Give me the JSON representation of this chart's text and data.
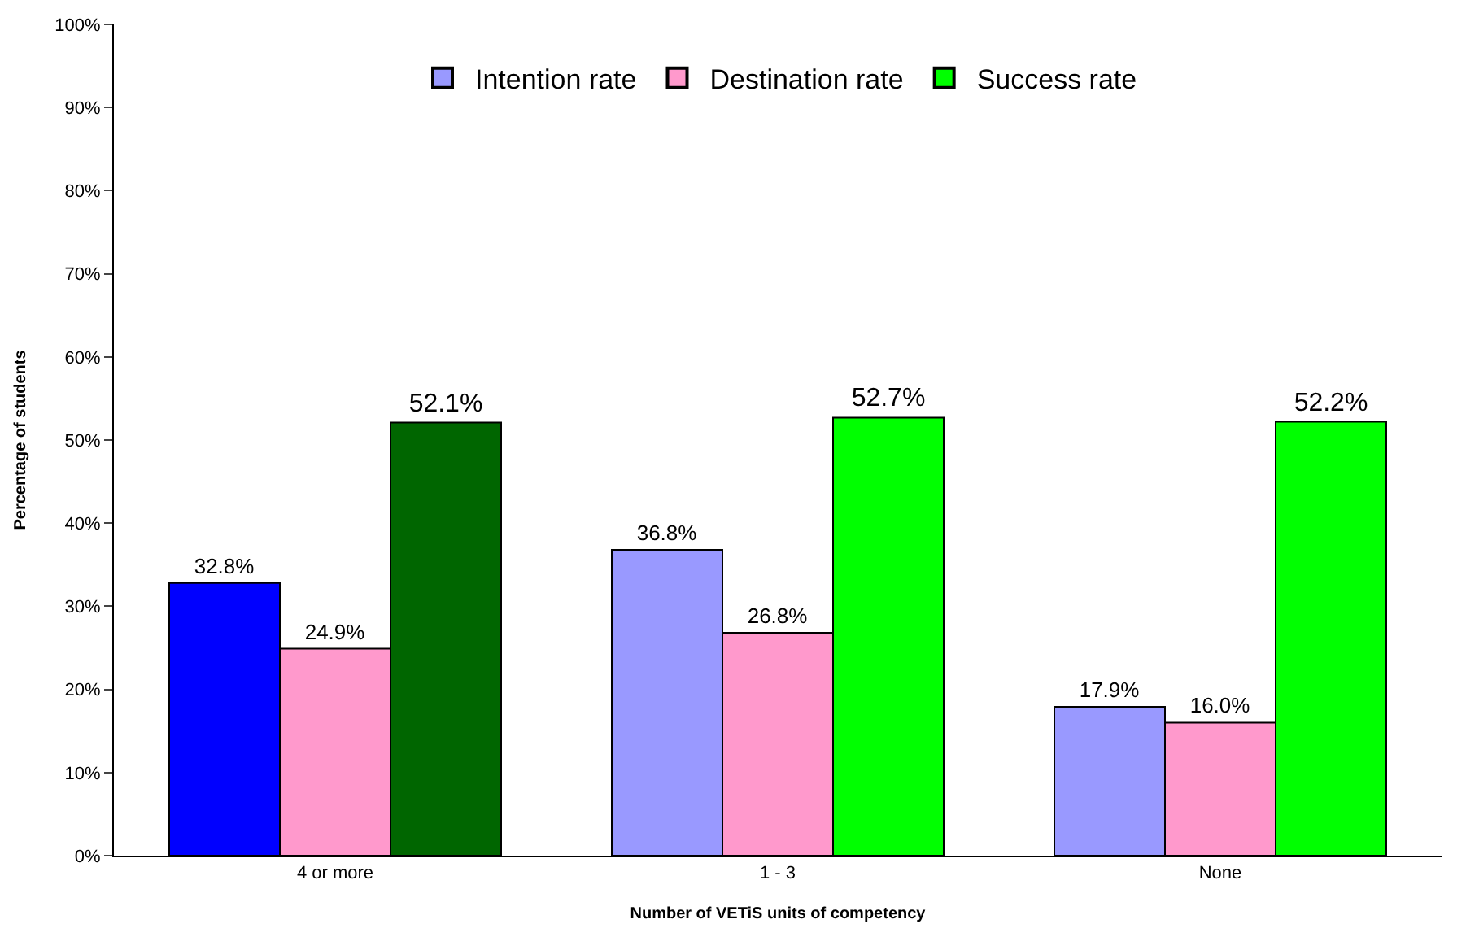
{
  "chart_data": {
    "type": "bar",
    "xlabel": "Number of VETiS units of competency",
    "ylabel": "Percentage of students",
    "categories": [
      "4 or more",
      "1 - 3",
      "None"
    ],
    "series": [
      {
        "name": "Intention rate",
        "color": "#9999ff",
        "colors": [
          "#0000ff",
          "#9999ff",
          "#9999ff"
        ],
        "values": [
          32.8,
          36.8,
          17.9
        ],
        "value_labels": [
          "32.8%",
          "36.8%",
          "17.9%"
        ]
      },
      {
        "name": "Destination rate",
        "color": "#ff99cc",
        "colors": [
          "#ff99cc",
          "#ff99cc",
          "#ff99cc"
        ],
        "values": [
          24.9,
          26.8,
          16.0
        ],
        "value_labels": [
          "24.9%",
          "26.8%",
          "16.0%"
        ]
      },
      {
        "name": "Success rate",
        "color": "#00ff00",
        "colors": [
          "#006600",
          "#00ff00",
          "#00ff00"
        ],
        "values": [
          52.1,
          52.7,
          52.2
        ],
        "value_labels": [
          "52.1%",
          "52.7%",
          "52.2%"
        ]
      }
    ],
    "ylim": [
      0,
      100
    ],
    "yticks": [
      {
        "value": 0,
        "label": "0%"
      },
      {
        "value": 10,
        "label": "10%"
      },
      {
        "value": 20,
        "label": "20%"
      },
      {
        "value": 30,
        "label": "30%"
      },
      {
        "value": 40,
        "label": "40%"
      },
      {
        "value": 50,
        "label": "50%"
      },
      {
        "value": 60,
        "label": "60%"
      },
      {
        "value": 70,
        "label": "70%"
      },
      {
        "value": 80,
        "label": "80%"
      },
      {
        "value": 90,
        "label": "90%"
      },
      {
        "value": 100,
        "label": "100%"
      }
    ],
    "grid": false,
    "legend": "top"
  }
}
